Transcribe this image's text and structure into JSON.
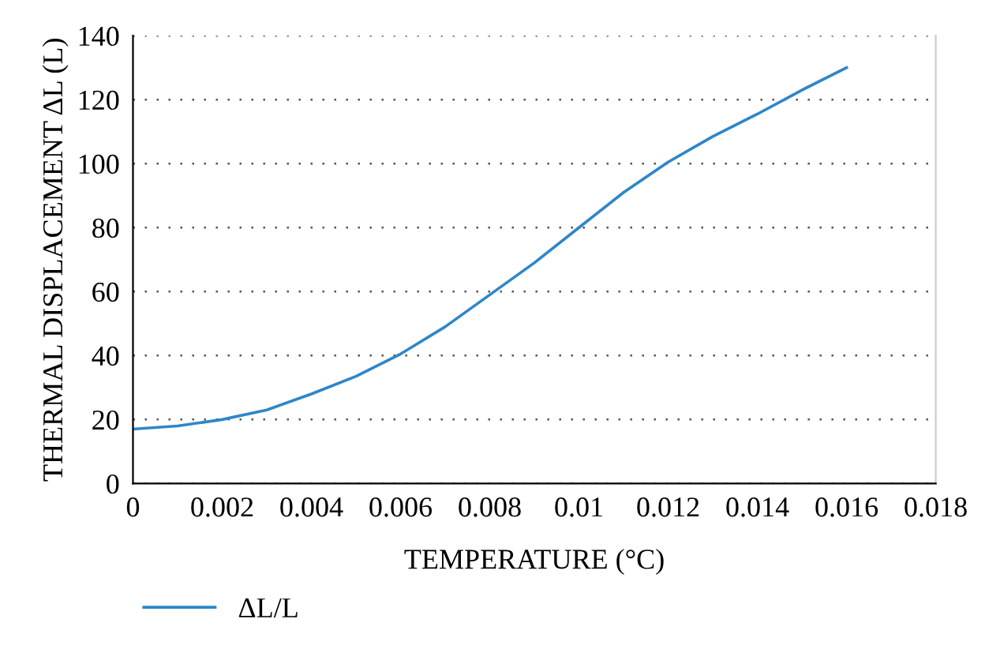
{
  "chart_data": {
    "type": "line",
    "xlabel": "TEMPERATURE (°C)",
    "ylabel": "THERMAL DISPLACEMENT ΔL (L)",
    "x": [
      0,
      0.001,
      0.002,
      0.003,
      0.004,
      0.005,
      0.006,
      0.007,
      0.008,
      0.009,
      0.01,
      0.011,
      0.012,
      0.013,
      0.014,
      0.015,
      0.016
    ],
    "series": [
      {
        "name": "ΔL/L",
        "color": "#2e86c8",
        "values": [
          17,
          18,
          20,
          23,
          28,
          33.5,
          40.5,
          49,
          59,
          69,
          80,
          91,
          100.5,
          108.5,
          115.5,
          123,
          130
        ]
      }
    ],
    "xlim": [
      0,
      0.018
    ],
    "xticks": [
      0,
      0.002,
      0.004,
      0.006,
      0.008,
      0.01,
      0.012,
      0.014,
      0.016,
      0.018
    ],
    "ylim": [
      0,
      140
    ],
    "yticks": [
      0,
      20,
      40,
      60,
      80,
      100,
      120,
      140
    ],
    "grid": "y",
    "legend": "bottom left",
    "marker": "none",
    "line_style": "solid"
  }
}
